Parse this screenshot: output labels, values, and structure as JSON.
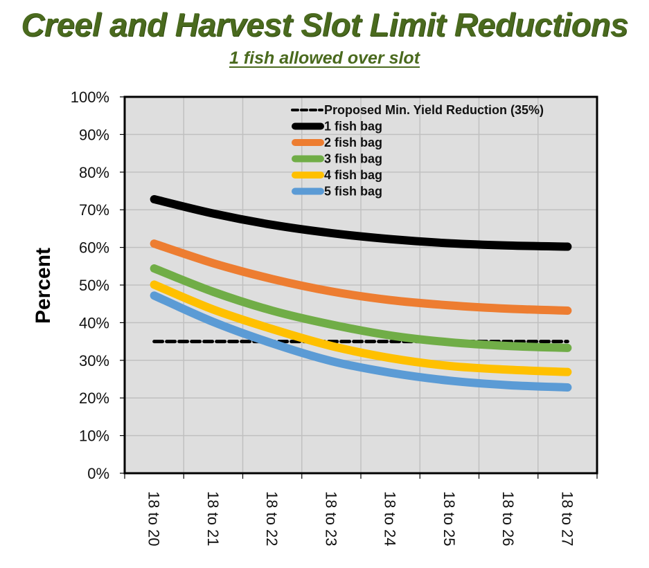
{
  "header": {
    "title": "Creel and Harvest Slot Limit Reductions",
    "subtitle": "1 fish allowed over slot"
  },
  "colors": {
    "title": "#4a6a1e",
    "plot_background": "#dedede",
    "gridline": "#c0c0c0"
  },
  "chart_data": {
    "type": "line",
    "title": "Creel and Harvest Slot Limit Reductions",
    "subtitle": "1 fish allowed over slot",
    "xlabel": "",
    "ylabel": "Percent",
    "ylim": [
      0,
      100
    ],
    "y_ticks": [
      "0%",
      "10%",
      "20%",
      "30%",
      "40%",
      "50%",
      "60%",
      "70%",
      "80%",
      "90%",
      "100%"
    ],
    "grid": true,
    "legend_position": "top-right",
    "categories": [
      "18 to 20",
      "18 to 21",
      "18 to 22",
      "18 to 23",
      "18 to 24",
      "18 to 25",
      "18 to 26",
      "18 to 27"
    ],
    "reference_line": {
      "name": "Proposed Min. Yield Reduction (35%)",
      "value": 35,
      "style": "dashed",
      "color": "#000000"
    },
    "series": [
      {
        "name": "1 fish bag",
        "color": "#000000",
        "values": [
          72.8,
          69.0,
          66.0,
          63.8,
          62.2,
          61.1,
          60.5,
          60.2
        ]
      },
      {
        "name": "2 fish bag",
        "color": "#ed7d31",
        "values": [
          61.0,
          55.8,
          51.6,
          48.3,
          46.0,
          44.6,
          43.7,
          43.2
        ]
      },
      {
        "name": "3 fish bag",
        "color": "#70ad47",
        "values": [
          54.4,
          48.2,
          43.2,
          39.5,
          36.6,
          34.8,
          33.8,
          33.3
        ]
      },
      {
        "name": "4 fish bag",
        "color": "#ffc000",
        "values": [
          50.1,
          43.5,
          38.3,
          33.8,
          30.6,
          28.5,
          27.5,
          26.9
        ]
      },
      {
        "name": "5 fish bag",
        "color": "#5b9bd5",
        "values": [
          47.2,
          40.2,
          34.5,
          29.8,
          26.7,
          24.6,
          23.4,
          22.8
        ]
      }
    ]
  }
}
